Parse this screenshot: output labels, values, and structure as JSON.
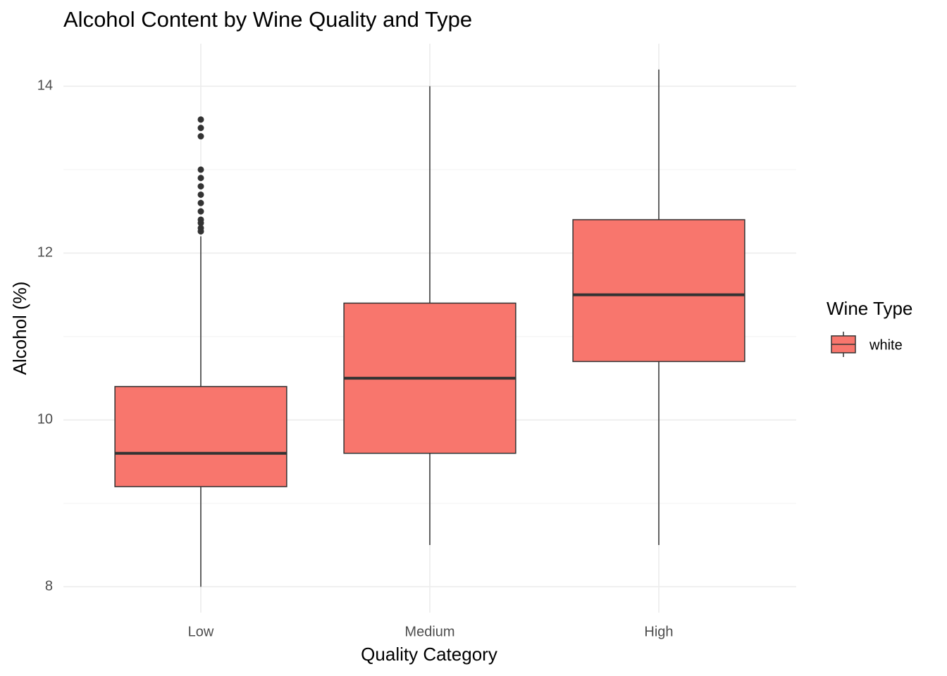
{
  "chart_data": {
    "type": "boxplot",
    "title": "Alcohol Content by Wine Quality and Type",
    "x_label": "Quality Category",
    "y_label": "Alcohol (%)",
    "categories": [
      "Low",
      "Medium",
      "High"
    ],
    "series": [
      {
        "name": "white",
        "color": "#F8766D",
        "min": [
          8,
          8.5,
          8.5
        ],
        "q1": [
          9.2,
          9.6,
          10.7
        ],
        "median": [
          9.6,
          10.5,
          11.5
        ],
        "q3": [
          10.4,
          11.4,
          12.4
        ],
        "max": [
          12.2,
          14,
          14.2
        ],
        "outliers": [
          [
            12.26,
            12.3,
            12.36,
            12.4,
            12.5,
            12.6,
            12.7,
            12.8,
            12.9,
            13,
            13.4,
            13.5,
            13.6
          ],
          [],
          []
        ]
      }
    ],
    "ylim": [
      7.69,
      14.51
    ],
    "yticks": [
      8,
      10,
      12,
      14
    ],
    "yminor": [
      9,
      11,
      13
    ],
    "grid": true,
    "legend_title": "Wine Type",
    "legend_position": "right"
  }
}
